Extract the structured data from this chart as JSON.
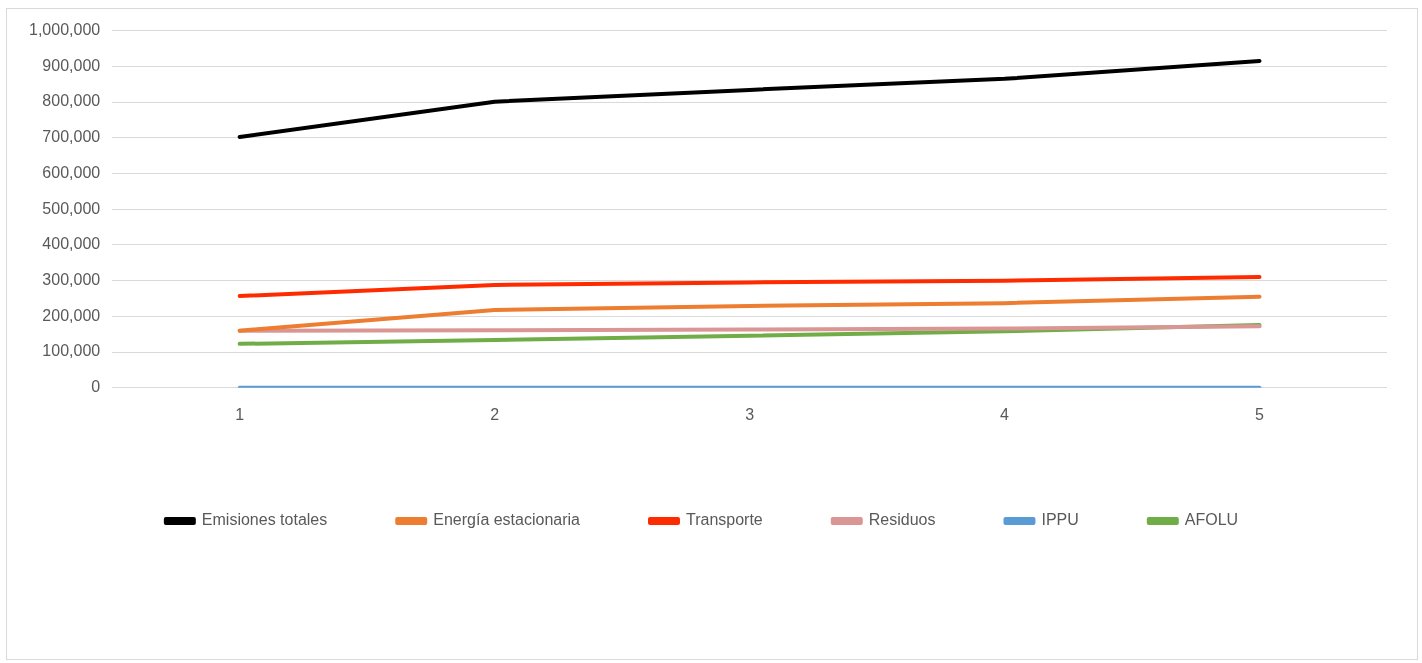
{
  "chart_data": {
    "type": "line",
    "categories": [
      "1",
      "2",
      "3",
      "4",
      "5"
    ],
    "series": [
      {
        "name": "Emisiones totales",
        "color": "#000000",
        "values": [
          702000,
          801000,
          834000,
          865000,
          915000
        ]
      },
      {
        "name": "Energía estacionaria",
        "color": "#ed7d31",
        "values": [
          160000,
          218000,
          229000,
          237000,
          255000
        ]
      },
      {
        "name": "Transporte",
        "color": "#ff2b00",
        "values": [
          257000,
          288000,
          295000,
          300000,
          310000
        ]
      },
      {
        "name": "Residuos",
        "color": "#d99694",
        "values": [
          160000,
          161000,
          163000,
          166000,
          172000
        ]
      },
      {
        "name": "IPPU",
        "color": "#5b9bd5",
        "values": [
          0,
          0,
          0,
          0,
          0
        ]
      },
      {
        "name": "AFOLU",
        "color": "#70ad47",
        "values": [
          123000,
          134000,
          146000,
          158000,
          176000
        ]
      }
    ],
    "ylim": [
      0,
      1000000
    ],
    "yticks": [
      0,
      {
        "value": 100000,
        "label": "100,000"
      },
      {
        "value": 200000,
        "label": "200,000"
      },
      {
        "value": 300000,
        "label": "300,000"
      },
      {
        "value": 400000,
        "label": "400,000"
      },
      {
        "value": 500000,
        "label": "500,000"
      },
      {
        "value": 600000,
        "label": "600,000"
      },
      {
        "value": 700000,
        "label": "700,000"
      },
      {
        "value": 800000,
        "label": "800,000"
      },
      {
        "value": 900000,
        "label": "900,000"
      },
      {
        "value": 1000000,
        "label": "1,000,000"
      }
    ],
    "grid": "y",
    "legend": "bottom",
    "marker": "none",
    "line_style": "solid"
  }
}
